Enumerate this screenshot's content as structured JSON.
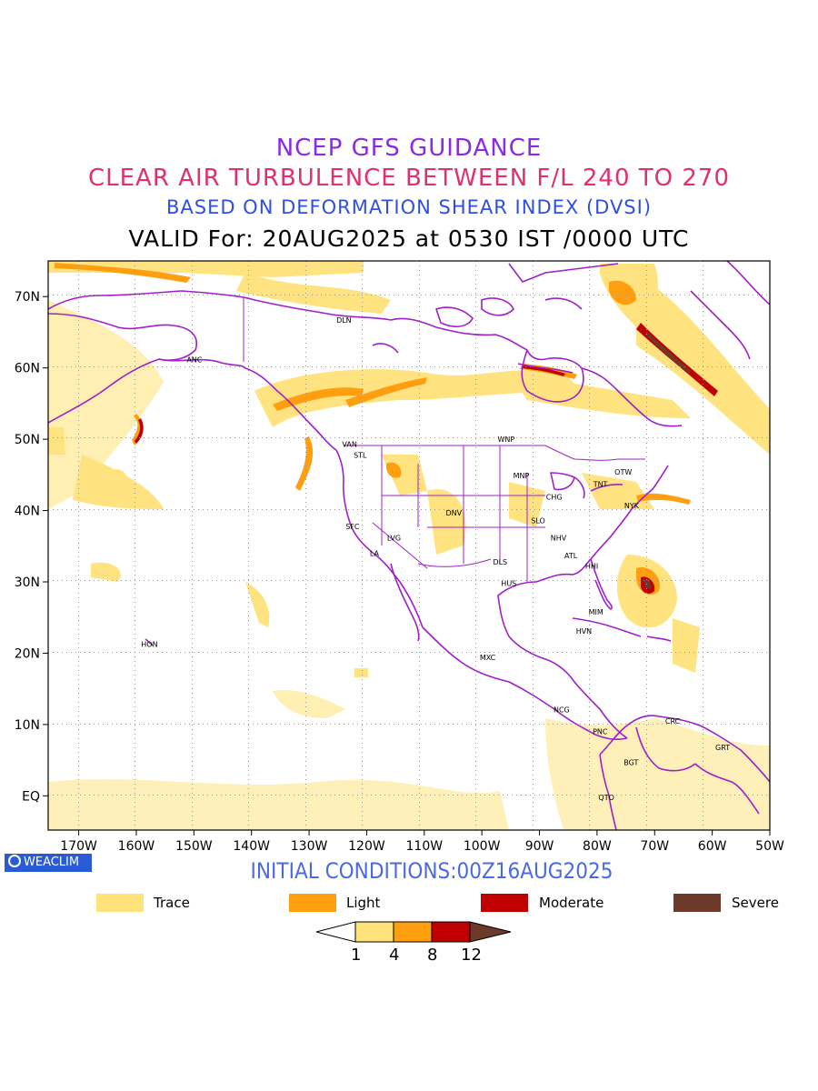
{
  "header": {
    "line1": "NCEP GFS GUIDANCE",
    "line2": "CLEAR AIR TURBULENCE BETWEEN F/L 240 TO 270",
    "line3": "BASED ON DEFORMATION SHEAR INDEX (DVSI)",
    "line4": "VALID For: 20AUG2025 at 0530 IST /0000 UTC"
  },
  "colors": {
    "line1": "#8a2be2",
    "line2": "#e0306e",
    "line3": "#2f4fe0",
    "line4": "#000000",
    "init": "#4a6ae0",
    "borders": "#a020c8",
    "trace": "#ffe27a",
    "light": "#ff9f10",
    "moderate": "#c00000",
    "severe": "#6b3a2a"
  },
  "map": {
    "lon_ticks": [
      "170W",
      "160W",
      "150W",
      "140W",
      "130W",
      "120W",
      "110W",
      "100W",
      "90W",
      "80W",
      "70W",
      "60W",
      "50W"
    ],
    "lat_ticks": [
      "70N",
      "60N",
      "50N",
      "40N",
      "30N",
      "20N",
      "10N",
      "EQ"
    ],
    "cities": [
      {
        "name": "DLN",
        "lon": -124,
        "lat": 66.7
      },
      {
        "name": "ANC",
        "lon": -150,
        "lat": 61.2
      },
      {
        "name": "WNP",
        "lon": -96,
        "lat": 50
      },
      {
        "name": "VAN",
        "lon": -123,
        "lat": 49.3
      },
      {
        "name": "STL",
        "lon": -121,
        "lat": 47.8
      },
      {
        "name": "OTW",
        "lon": -75.7,
        "lat": 45.4
      },
      {
        "name": "MNP",
        "lon": -93.3,
        "lat": 44.9
      },
      {
        "name": "TNT",
        "lon": -79.4,
        "lat": 43.7
      },
      {
        "name": "CHG",
        "lon": -87.6,
        "lat": 41.9
      },
      {
        "name": "NYK",
        "lon": -74,
        "lat": 40.7
      },
      {
        "name": "DNV",
        "lon": -105,
        "lat": 39.7
      },
      {
        "name": "SFC",
        "lon": -122.4,
        "lat": 37.8
      },
      {
        "name": "SLO",
        "lon": -90.2,
        "lat": 38.6
      },
      {
        "name": "LVG",
        "lon": -115.2,
        "lat": 36.2
      },
      {
        "name": "NHV",
        "lon": -86.8,
        "lat": 36.2
      },
      {
        "name": "LA",
        "lon": -118.2,
        "lat": 34
      },
      {
        "name": "ATL",
        "lon": -84.4,
        "lat": 33.7
      },
      {
        "name": "DLS",
        "lon": -96.8,
        "lat": 32.8
      },
      {
        "name": "HHI",
        "lon": -80.8,
        "lat": 32.2
      },
      {
        "name": "HUS",
        "lon": -95.4,
        "lat": 29.8
      },
      {
        "name": "MIM",
        "lon": -80.2,
        "lat": 25.8
      },
      {
        "name": "HON",
        "lon": -157.9,
        "lat": 21.3
      },
      {
        "name": "HVN",
        "lon": -82.4,
        "lat": 23.1
      },
      {
        "name": "MXC",
        "lon": -99.1,
        "lat": 19.4
      },
      {
        "name": "NCG",
        "lon": -86.3,
        "lat": 12.1
      },
      {
        "name": "CRC",
        "lon": -66.9,
        "lat": 10.5
      },
      {
        "name": "PNC",
        "lon": -79.5,
        "lat": 9
      },
      {
        "name": "GRT",
        "lon": -58.2,
        "lat": 6.8
      },
      {
        "name": "BGT",
        "lon": -74.1,
        "lat": 4.7
      },
      {
        "name": "QTO",
        "lon": -78.5,
        "lat": -0.2
      }
    ]
  },
  "logo": {
    "text": "WEACLIM"
  },
  "footer": {
    "init": "INITIAL CONDITIONS:00Z16AUG2025"
  },
  "legend": {
    "trace": "Trace",
    "light": "Light",
    "moderate": "Moderate",
    "severe": "Severe"
  },
  "colorbar": {
    "ticks": [
      "1",
      "4",
      "8",
      "12"
    ]
  }
}
